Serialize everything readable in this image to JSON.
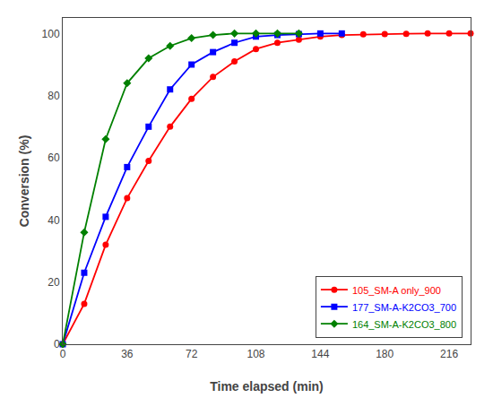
{
  "chart_data": {
    "type": "line",
    "xlabel": "Time elapsed (min)",
    "ylabel": "Conversion (%)",
    "series": [
      {
        "name": "105_SM-A only_900",
        "color": "#ff0000",
        "marker": "circle",
        "x": [
          0,
          12,
          24,
          36,
          48,
          60,
          72,
          84,
          96,
          108,
          120,
          132,
          144,
          156,
          168,
          180,
          192,
          204,
          216,
          228
        ],
        "values": [
          0,
          13,
          32,
          47,
          59,
          70,
          79,
          86,
          91,
          95,
          97,
          98,
          99,
          99.5,
          99.7,
          99.8,
          99.9,
          100,
          100,
          100
        ]
      },
      {
        "name": "177_SM-A-K2CO3_700",
        "color": "#0000ff",
        "marker": "square",
        "x": [
          0,
          12,
          24,
          36,
          48,
          60,
          72,
          84,
          96,
          108,
          120,
          132,
          144,
          156
        ],
        "values": [
          0,
          23,
          41,
          57,
          70,
          82,
          90,
          94,
          97,
          99,
          99.5,
          99.8,
          100,
          100
        ]
      },
      {
        "name": "164_SM-A-K2CO3_800",
        "color": "#008000",
        "marker": "diamond",
        "x": [
          0,
          12,
          24,
          36,
          48,
          60,
          72,
          84,
          96,
          108,
          120,
          132
        ],
        "values": [
          0,
          36,
          66,
          84,
          92,
          96,
          98.5,
          99.5,
          100,
          100,
          100,
          100
        ]
      }
    ],
    "xlim": [
      0,
      228
    ],
    "ylim": [
      0,
      105
    ],
    "xticks": [
      0,
      36,
      72,
      108,
      144,
      180,
      216
    ],
    "yticks": [
      0,
      20,
      40,
      60,
      80,
      100
    ],
    "grid": false,
    "legend": "lower right"
  }
}
